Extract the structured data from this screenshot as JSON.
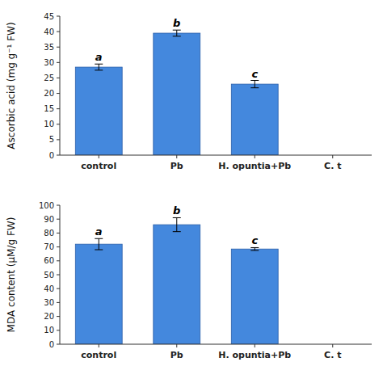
{
  "chart_data": [
    {
      "type": "bar",
      "categories": [
        "control",
        "Pb",
        "H. opuntia+Pb",
        "C. t"
      ],
      "values": [
        28.5,
        39.5,
        23.0,
        null
      ],
      "errors": [
        1.0,
        1.0,
        1.2,
        null
      ],
      "annotations": [
        "a",
        "b",
        "c",
        null
      ],
      "ylabel": "Ascorbic acid (mg g⁻¹ FW)",
      "ylim": [
        0,
        45
      ],
      "yticks": [
        0,
        5,
        10,
        15,
        20,
        25,
        30,
        35,
        40,
        45
      ],
      "color": "#4488dd",
      "grid": false
    },
    {
      "type": "bar",
      "categories": [
        "control",
        "Pb",
        "H. opuntia+Pb",
        "C. t"
      ],
      "values": [
        72.0,
        86.0,
        68.5,
        null
      ],
      "errors": [
        4.0,
        5.0,
        1.0,
        null
      ],
      "annotations": [
        "a",
        "b",
        "c",
        null
      ],
      "ylabel": "MDA content (μM/g FW)",
      "ylim": [
        0,
        100
      ],
      "yticks": [
        0,
        10,
        20,
        30,
        40,
        50,
        60,
        70,
        80,
        90,
        100
      ],
      "color": "#4488dd",
      "grid": false
    }
  ]
}
